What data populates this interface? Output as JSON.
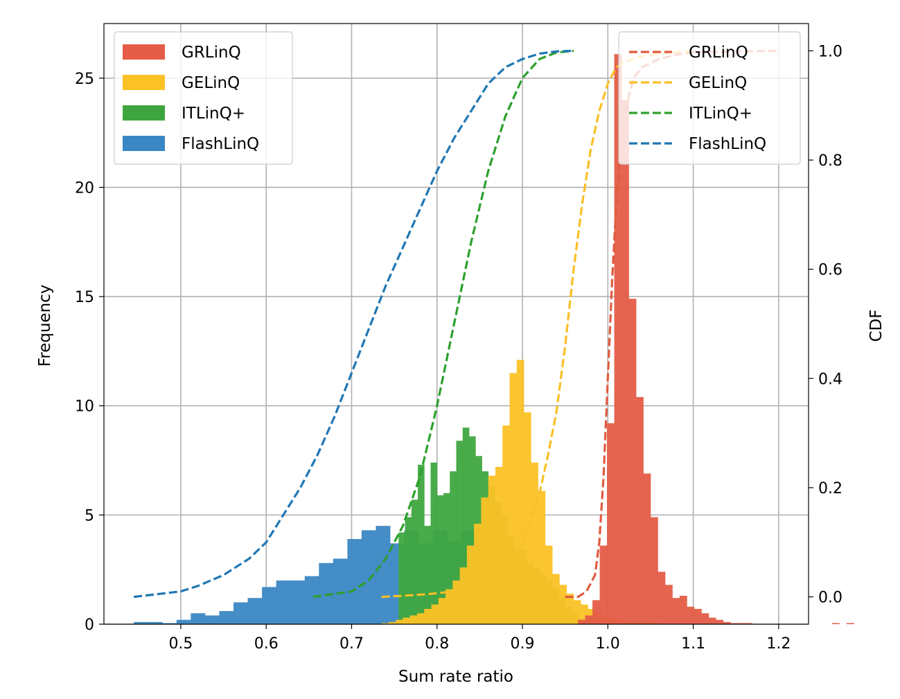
{
  "chart_data": {
    "type": "bar",
    "xlabel": "Sum rate ratio",
    "ylabel": "Frequency",
    "y2label": "CDF",
    "xlim": [
      0.41,
      1.235
    ],
    "ylim": [
      0,
      27.5
    ],
    "y2lim": [
      -0.05,
      1.05
    ],
    "xticks": [
      0.5,
      0.6,
      0.7,
      0.8,
      0.9,
      1.0,
      1.1,
      1.2
    ],
    "xtick_labels": [
      "0.5",
      "0.6",
      "0.7",
      "0.8",
      "0.9",
      "1.0",
      "1.1",
      "1.2"
    ],
    "yticks": [
      0,
      5,
      10,
      15,
      20,
      25
    ],
    "ytick_labels": [
      "0",
      "5",
      "10",
      "15",
      "20",
      "25"
    ],
    "y2ticks": [
      0.0,
      0.2,
      0.4,
      0.6,
      0.8,
      1.0
    ],
    "y2tick_labels": [
      "0.0",
      "0.2",
      "0.4",
      "0.6",
      "0.8",
      "1.0"
    ],
    "grid": true,
    "histogram_legend_position": "upper-left",
    "cdf_legend_position": "upper-right",
    "histograms": [
      {
        "name": "FlashLinQ",
        "color": "#3a87c4",
        "bin_start": 0.445,
        "bin_width": 0.01667,
        "counts": [
          0.1,
          0.1,
          0.05,
          0.2,
          0.5,
          0.4,
          0.6,
          1.0,
          1.2,
          1.7,
          2.0,
          2.0,
          2.2,
          2.8,
          3.0,
          3.9,
          4.3,
          4.5,
          3.7,
          4.3,
          3.7,
          4.3,
          3.8,
          4.3,
          3.3,
          2.8,
          2.5,
          1.8,
          1.4,
          0.9,
          0.5,
          0.3,
          0.2,
          0.1,
          0.05
        ]
      },
      {
        "name": "ITLinQ+",
        "color": "#3fa63f",
        "bin_start": 0.755,
        "bin_width": 0.0075,
        "counts": [
          4.2,
          4.9,
          5.7,
          7.3,
          4.5,
          7.4,
          5.9,
          6.0,
          7.0,
          8.4,
          9.0,
          8.6,
          7.7,
          7.0,
          6.3,
          5.6,
          5.0,
          4.0,
          3.5,
          3.4,
          2.8,
          2.6,
          2.3,
          2.0,
          1.6,
          1.2,
          0.8,
          0.5
        ]
      },
      {
        "name": "GELinQ",
        "color": "#fbc226",
        "bin_start": 0.735,
        "bin_width": 0.00833,
        "counts": [
          0.05,
          0.1,
          0.2,
          0.3,
          0.4,
          0.5,
          0.7,
          0.9,
          1.2,
          1.6,
          2.0,
          2.6,
          3.6,
          4.6,
          5.8,
          6.8,
          7.2,
          9.1,
          11.5,
          12.1,
          9.7,
          7.4,
          6.1,
          3.6,
          2.3,
          1.8,
          1.4,
          1.1,
          0.9,
          0.7,
          0.5,
          0.4,
          0.3,
          0.2,
          0.15,
          0.1,
          0.1,
          0.05,
          0.05
        ]
      },
      {
        "name": "GRLinQ",
        "color": "#e45c47",
        "bin_start": 0.965,
        "bin_width": 0.0085,
        "counts": [
          0.2,
          0.4,
          1.1,
          3.6,
          9.2,
          26.1,
          24.0,
          14.9,
          10.4,
          6.9,
          4.9,
          2.4,
          1.8,
          1.2,
          1.3,
          0.8,
          0.7,
          0.5,
          0.3,
          0.2,
          0.1,
          0.05,
          0.05,
          0.05,
          0.0,
          0.0,
          0.0,
          0.0,
          0.0,
          0.0,
          0.0,
          0.0,
          0.0,
          0.0,
          0.0,
          0.05,
          0.0,
          0.05
        ]
      }
    ],
    "cdfs": [
      {
        "name": "GRLinQ",
        "color": "#e05b3f",
        "x": [
          0.95,
          0.965,
          0.975,
          0.985,
          0.99,
          0.995,
          1.0,
          1.005,
          1.01,
          1.015,
          1.02,
          1.025,
          1.03,
          1.04,
          1.06,
          1.08,
          1.1,
          1.15,
          1.2
        ],
        "y": [
          0.0,
          0.0,
          0.01,
          0.04,
          0.1,
          0.22,
          0.4,
          0.58,
          0.72,
          0.82,
          0.88,
          0.92,
          0.95,
          0.97,
          0.985,
          0.993,
          0.997,
          0.999,
          1.0
        ]
      },
      {
        "name": "GELinQ",
        "color": "#f9bf26",
        "x": [
          0.735,
          0.76,
          0.79,
          0.82,
          0.85,
          0.87,
          0.89,
          0.9,
          0.91,
          0.92,
          0.93,
          0.94,
          0.95,
          0.96,
          0.97,
          0.98,
          0.99,
          1.0,
          1.01,
          1.02,
          1.04,
          1.06,
          1.1
        ],
        "y": [
          0.0,
          0.002,
          0.005,
          0.01,
          0.02,
          0.04,
          0.07,
          0.1,
          0.14,
          0.19,
          0.26,
          0.34,
          0.46,
          0.6,
          0.72,
          0.82,
          0.89,
          0.94,
          0.97,
          0.98,
          0.99,
          0.995,
          1.0
        ]
      },
      {
        "name": "ITLinQ+",
        "color": "#2ca02c",
        "x": [
          0.655,
          0.7,
          0.72,
          0.74,
          0.76,
          0.78,
          0.8,
          0.82,
          0.84,
          0.86,
          0.88,
          0.9,
          0.92,
          0.94,
          0.96
        ],
        "y": [
          0.0,
          0.01,
          0.03,
          0.07,
          0.13,
          0.22,
          0.35,
          0.5,
          0.65,
          0.78,
          0.88,
          0.95,
          0.985,
          0.997,
          1.0
        ]
      },
      {
        "name": "FlashLinQ",
        "color": "#1f77b4",
        "x": [
          0.445,
          0.5,
          0.52,
          0.55,
          0.58,
          0.6,
          0.62,
          0.64,
          0.66,
          0.68,
          0.7,
          0.72,
          0.74,
          0.76,
          0.78,
          0.8,
          0.82,
          0.84,
          0.86,
          0.88,
          0.9,
          0.92,
          0.94,
          0.96
        ],
        "y": [
          0.0,
          0.01,
          0.02,
          0.04,
          0.07,
          0.1,
          0.15,
          0.2,
          0.26,
          0.33,
          0.41,
          0.49,
          0.57,
          0.64,
          0.71,
          0.78,
          0.84,
          0.89,
          0.94,
          0.97,
          0.985,
          0.995,
          0.999,
          1.0
        ]
      }
    ]
  }
}
